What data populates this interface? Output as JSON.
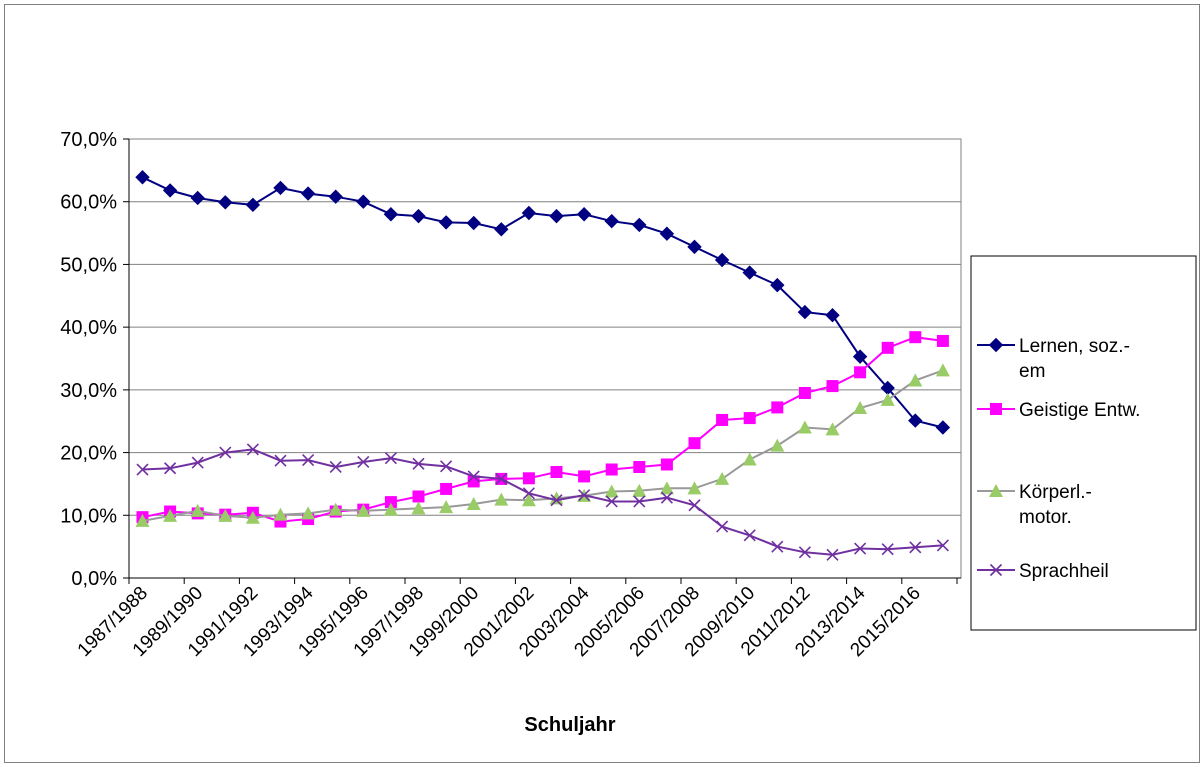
{
  "chart_data": {
    "type": "line",
    "title": "",
    "xlabel": "Schuljahr",
    "ylabel": "",
    "ylim": [
      0,
      0.7
    ],
    "y_ticks": [
      "0,0%",
      "10,0%",
      "20,0%",
      "30,0%",
      "40,0%",
      "50,0%",
      "60,0%",
      "70,0%"
    ],
    "grid": "horizontal",
    "legend_position": "right",
    "x_tick_labels": [
      "1987/1988",
      "1989/1990",
      "1991/1992",
      "1993/1994",
      "1995/1996",
      "1997/1998",
      "1999/2000",
      "2001/2002",
      "2003/2004",
      "2005/2006",
      "2007/2008",
      "2009/2010",
      "2011/2012",
      "2013/2014",
      "2015/2016"
    ],
    "series": [
      {
        "name": "Lernen, soz.-\nem",
        "color": "#000080",
        "marker": "diamond",
        "values": [
          0.639,
          0.618,
          0.606,
          0.599,
          0.595,
          0.622,
          0.613,
          0.608,
          0.6,
          0.58,
          0.577,
          0.567,
          0.566,
          0.556,
          0.582,
          0.577,
          0.58,
          0.569,
          0.563,
          0.549,
          0.528,
          0.507,
          0.487,
          0.467,
          0.424,
          0.419,
          0.353,
          0.303,
          0.251,
          0.24
        ]
      },
      {
        "name": "Geistige Entw.",
        "color": "#FF00FF",
        "marker": "square",
        "values": [
          0.097,
          0.106,
          0.103,
          0.101,
          0.104,
          0.09,
          0.094,
          0.106,
          0.109,
          0.121,
          0.13,
          0.142,
          0.154,
          0.158,
          0.159,
          0.169,
          0.162,
          0.173,
          0.177,
          0.181,
          0.215,
          0.252,
          0.255,
          0.272,
          0.295,
          0.306,
          0.328,
          0.367,
          0.384,
          0.378
        ]
      },
      {
        "name": "Körperl.-\nmotor.",
        "color": "#99CC66",
        "line_color": "#999999",
        "marker": "triangle",
        "values": [
          0.091,
          0.099,
          0.107,
          0.099,
          0.096,
          0.101,
          0.103,
          0.109,
          0.107,
          0.109,
          0.111,
          0.113,
          0.118,
          0.125,
          0.124,
          0.127,
          0.131,
          0.138,
          0.139,
          0.143,
          0.143,
          0.158,
          0.189,
          0.211,
          0.24,
          0.237,
          0.271,
          0.284,
          0.315,
          0.331
        ]
      },
      {
        "name": "Sprachheil",
        "color": "#7030A0",
        "marker": "x",
        "values": [
          0.173,
          0.175,
          0.184,
          0.2,
          0.205,
          0.187,
          0.188,
          0.177,
          0.185,
          0.191,
          0.182,
          0.178,
          0.162,
          0.158,
          0.135,
          0.124,
          0.132,
          0.122,
          0.122,
          0.128,
          0.116,
          0.082,
          0.068,
          0.05,
          0.041,
          0.037,
          0.047,
          0.046,
          0.049,
          0.052
        ]
      }
    ]
  }
}
